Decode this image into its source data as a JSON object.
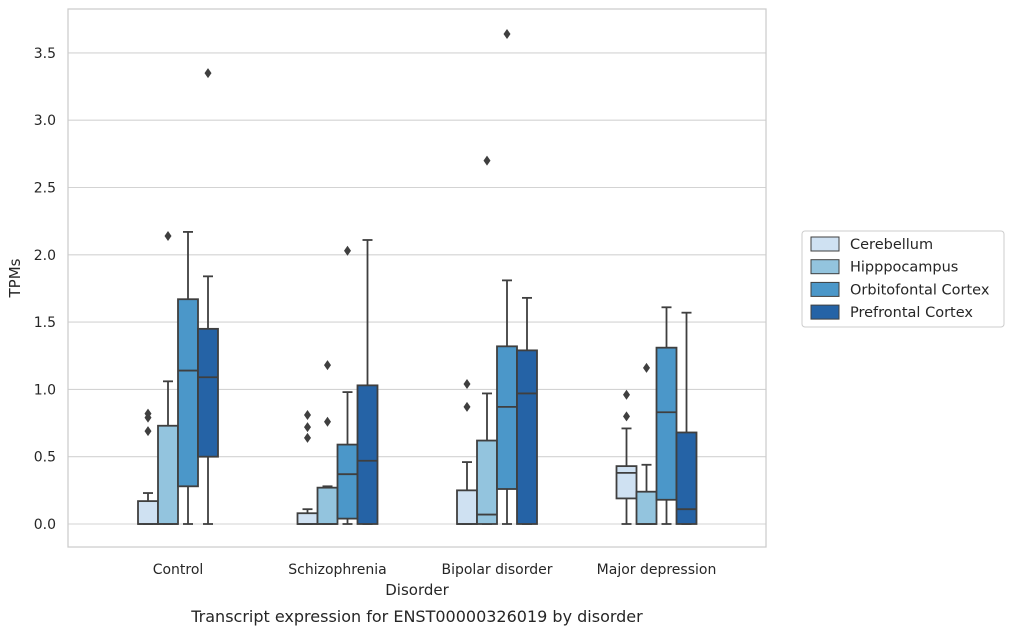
{
  "chart_data": {
    "type": "boxplot",
    "caption": "Transcript expression for ENST00000326019 by disorder",
    "xlabel": "Disorder",
    "ylabel": "TPMs",
    "ylim": [
      -0.18,
      3.83
    ],
    "yticks": [
      "0.0",
      "0.5",
      "1.0",
      "1.5",
      "2.0",
      "2.5",
      "3.0",
      "3.5"
    ],
    "ytick_values": [
      0,
      0.5,
      1.0,
      1.5,
      2.0,
      2.5,
      3.0,
      3.5
    ],
    "grid": true,
    "legend_position": "right",
    "categories": [
      "Control",
      "Schizophrenia",
      "Bipolar disorder",
      "Major depression"
    ],
    "series": [
      {
        "name": "Cerebellum",
        "color": "#cfe1f2",
        "boxes": [
          {
            "whislo": 0.0,
            "q1": 0.0,
            "med": 0.0,
            "q3": 0.17,
            "whishi": 0.23,
            "fliers": [
              0.69,
              0.79,
              0.82
            ]
          },
          {
            "whislo": 0.0,
            "q1": 0.0,
            "med": 0.0,
            "q3": 0.08,
            "whishi": 0.11,
            "fliers": [
              0.64,
              0.72,
              0.81
            ]
          },
          {
            "whislo": 0.0,
            "q1": 0.0,
            "med": 0.0,
            "q3": 0.25,
            "whishi": 0.46,
            "fliers": [
              0.87,
              1.04
            ]
          },
          {
            "whislo": 0.0,
            "q1": 0.19,
            "med": 0.38,
            "q3": 0.43,
            "whishi": 0.71,
            "fliers": [
              0.8,
              0.96
            ]
          }
        ]
      },
      {
        "name": "Hipppocampus",
        "color": "#93c4de",
        "boxes": [
          {
            "whislo": 0.0,
            "q1": 0.0,
            "med": 0.0,
            "q3": 0.73,
            "whishi": 1.06,
            "fliers": [
              2.14
            ]
          },
          {
            "whislo": 0.0,
            "q1": 0.0,
            "med": 0.0,
            "q3": 0.27,
            "whishi": 0.28,
            "fliers": [
              0.76,
              1.18
            ]
          },
          {
            "whislo": 0.0,
            "q1": 0.0,
            "med": 0.07,
            "q3": 0.62,
            "whishi": 0.97,
            "fliers": [
              2.7
            ]
          },
          {
            "whislo": 0.0,
            "q1": 0.0,
            "med": 0.0,
            "q3": 0.24,
            "whishi": 0.44,
            "fliers": [
              1.16
            ]
          }
        ]
      },
      {
        "name": "Orbitofontal Cortex",
        "color": "#4b97c9",
        "boxes": [
          {
            "whislo": 0.0,
            "q1": 0.28,
            "med": 1.14,
            "q3": 1.67,
            "whishi": 2.17,
            "fliers": []
          },
          {
            "whislo": 0.0,
            "q1": 0.04,
            "med": 0.37,
            "q3": 0.59,
            "whishi": 0.98,
            "fliers": [
              2.03
            ]
          },
          {
            "whislo": 0.0,
            "q1": 0.26,
            "med": 0.87,
            "q3": 1.32,
            "whishi": 1.81,
            "fliers": [
              3.64
            ]
          },
          {
            "whislo": 0.0,
            "q1": 0.18,
            "med": 0.83,
            "q3": 1.31,
            "whishi": 1.61,
            "fliers": []
          }
        ]
      },
      {
        "name": "Prefrontal Cortex",
        "color": "#2563a6",
        "boxes": [
          {
            "whislo": 0.0,
            "q1": 0.5,
            "med": 1.09,
            "q3": 1.45,
            "whishi": 1.84,
            "fliers": [
              3.35
            ]
          },
          {
            "whislo": 0.0,
            "q1": 0.0,
            "med": 0.47,
            "q3": 1.03,
            "whishi": 2.11,
            "fliers": []
          },
          {
            "whislo": 0.0,
            "q1": 0.0,
            "med": 0.97,
            "q3": 1.29,
            "whishi": 1.68,
            "fliers": []
          },
          {
            "whislo": 0.0,
            "q1": 0.0,
            "med": 0.11,
            "q3": 0.68,
            "whishi": 1.57,
            "fliers": []
          }
        ]
      }
    ]
  }
}
